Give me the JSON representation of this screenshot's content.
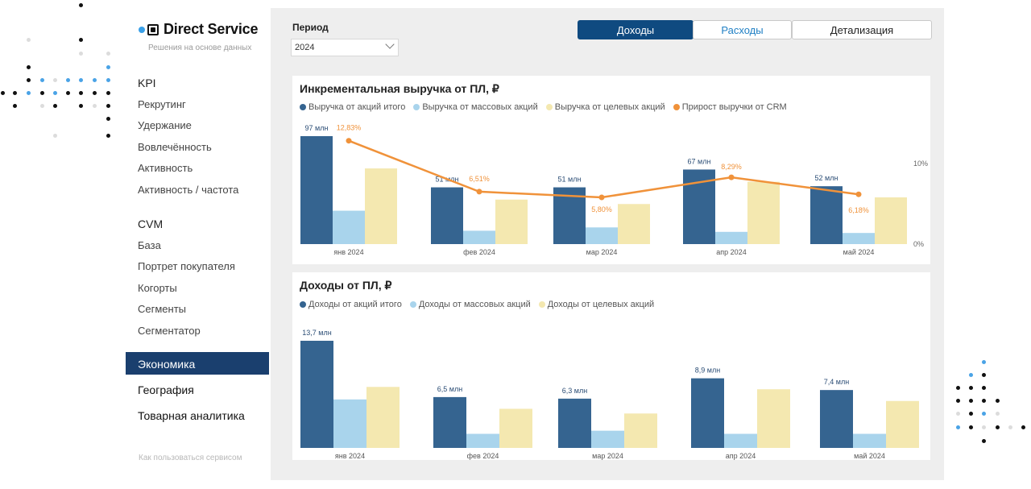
{
  "brand": {
    "name": "Direct Service",
    "tagline": "Решения на основе данных"
  },
  "nav": {
    "kpi_section": "KPI",
    "kpi_items": [
      "Рекрутинг",
      "Удержание",
      "Вовлечённость",
      "Активность",
      "Активность / частота"
    ],
    "cvm_section": "CVM",
    "cvm_items": [
      "База",
      "Портрет покупателя",
      "Когорты",
      "Сегменты",
      "Сегментатор"
    ],
    "active": "Экономика",
    "other_items": [
      "География",
      "Товарная аналитика"
    ],
    "help": "Как пользоваться сервисом"
  },
  "filters": {
    "period_label": "Период",
    "period_value": "2024"
  },
  "tabs": [
    {
      "label": "Доходы",
      "active": true
    },
    {
      "label": "Расходы",
      "active": false
    },
    {
      "label": "Детализация",
      "active": false
    }
  ],
  "colors": {
    "dark_blue": "#356490",
    "light_blue": "#a9d4ec",
    "yellow": "#f4e8b0",
    "orange": "#f0923a",
    "nav_active": "#1a3f6e",
    "tab_active": "#0f4a80"
  },
  "chart1": {
    "title": "Инкрементальная выручка от ПЛ, ₽",
    "legend": [
      "Выручка от акций итого",
      "Выручка от массовых акций",
      "Выручка от целевых акций",
      "Прирост выручки от CRM"
    ],
    "axis_right": [
      "10%",
      "0%"
    ]
  },
  "chart2": {
    "title": "Доходы от ПЛ, ₽",
    "legend": [
      "Доходы от акций итого",
      "Доходы от массовых акций",
      "Доходы от целевых акций"
    ]
  },
  "chart_data": [
    {
      "type": "bar",
      "title": "Инкрементальная выручка от ПЛ, ₽",
      "categories": [
        "янв 2024",
        "фев 2024",
        "мар 2024",
        "апр 2024",
        "май 2024"
      ],
      "series": [
        {
          "name": "Выручка от акций итого",
          "values": [
            97,
            51,
            51,
            67,
            52
          ],
          "labels": [
            "97 млн",
            "51 млн",
            "51 млн",
            "67 млн",
            "52 млн"
          ]
        },
        {
          "name": "Выручка от массовых акций",
          "values": [
            30,
            12,
            15,
            11,
            10
          ]
        },
        {
          "name": "Выручка от целевых акций",
          "values": [
            68,
            40,
            36,
            56,
            42
          ]
        }
      ],
      "line": {
        "name": "Прирост выручки от CRM",
        "values": [
          12.83,
          6.51,
          5.8,
          8.29,
          6.18
        ],
        "labels": [
          "12,83%",
          "6,51%",
          "5,80%",
          "8,29%",
          "6,18%"
        ],
        "ylim": [
          0,
          15
        ]
      },
      "right_ticks": [
        "10%",
        "0%"
      ],
      "ylim": [
        0,
        97
      ]
    },
    {
      "type": "bar",
      "title": "Доходы от ПЛ, ₽",
      "categories": [
        "янв 2024",
        "фев 2024",
        "мар 2024",
        "апр 2024",
        "май 2024"
      ],
      "series": [
        {
          "name": "Доходы от акций итого",
          "values": [
            13.7,
            6.5,
            6.3,
            8.9,
            7.4
          ],
          "labels": [
            "13,7 млн",
            "6,5 млн",
            "6,3 млн",
            "8,9 млн",
            "7,4 млн"
          ]
        },
        {
          "name": "Доходы от массовых акций",
          "values": [
            6.2,
            1.8,
            2.2,
            1.8,
            1.8
          ]
        },
        {
          "name": "Доходы от целевых акций",
          "values": [
            7.8,
            5.0,
            4.4,
            7.5,
            6.0
          ]
        }
      ],
      "ylim": [
        0,
        13.7
      ]
    }
  ]
}
